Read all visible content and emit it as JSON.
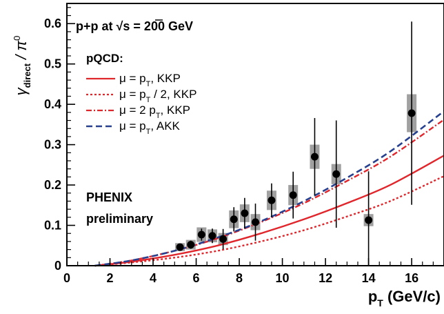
{
  "chart_data": {
    "type": "scatter",
    "ylabel": {
      "main": "γ",
      "main_sub": "direct",
      "slash": " / π",
      "slash_sup": "0"
    },
    "xlabel": {
      "main": "p",
      "sub": "T",
      "rest": " (GeV/c)"
    },
    "xlim": [
      0,
      17.5
    ],
    "ylim": [
      0,
      0.65
    ],
    "x_ticks": [
      0,
      2,
      4,
      6,
      8,
      10,
      12,
      14,
      16
    ],
    "y_ticks": [
      0,
      0.1,
      0.2,
      0.3,
      0.4,
      0.5,
      0.6
    ],
    "x_tick_labels": [
      "0",
      "2",
      "4",
      "6",
      "8",
      "10",
      "12",
      "14",
      "16"
    ],
    "y_tick_labels": [
      "0",
      "0.1",
      "0.2",
      "0.3",
      "0.4",
      "0.5",
      "0.6"
    ],
    "annotations": {
      "system": {
        "pre": "p+p at ",
        "sqrt": "s",
        "post": " = 200 GeV"
      },
      "pqcd_title": "pQCD:",
      "experiment_line1": "PHENIX",
      "experiment_line2": "preliminary"
    },
    "legend_placement": "upper-left",
    "series": [
      {
        "name": "PHENIX preliminary",
        "kind": "points",
        "color": "#000000",
        "box_color": "#a0a0a0",
        "x": [
          5.25,
          5.75,
          6.25,
          6.75,
          7.25,
          7.75,
          8.25,
          8.75,
          9.5,
          10.5,
          11.5,
          12.5,
          14.0,
          16.0
        ],
        "y": [
          0.046,
          0.052,
          0.077,
          0.074,
          0.066,
          0.115,
          0.13,
          0.108,
          0.162,
          0.175,
          0.27,
          0.227,
          0.113,
          0.378
        ],
        "stat_err": [
          0.008,
          0.01,
          0.015,
          0.018,
          0.025,
          0.03,
          0.038,
          0.046,
          0.042,
          0.058,
          0.096,
          0.133,
          0.121,
          0.227
        ],
        "sys_err": [
          0.01,
          0.012,
          0.018,
          0.016,
          0.015,
          0.022,
          0.022,
          0.02,
          0.024,
          0.025,
          0.03,
          0.025,
          0.015,
          0.047
        ]
      },
      {
        "name_parts": {
          "pre": "μ = p",
          "sub": "T",
          "post": ", KKP"
        },
        "kind": "curve",
        "color": "#e0252b",
        "dash": "solid",
        "x": [
          1.3,
          3,
          5,
          7,
          9,
          11,
          13,
          15,
          17.5
        ],
        "y": [
          0.0,
          0.01,
          0.027,
          0.05,
          0.08,
          0.115,
          0.155,
          0.2,
          0.273
        ]
      },
      {
        "name_parts": {
          "pre": "μ = p",
          "sub": "T",
          "post": " / 2, KKP"
        },
        "kind": "curve",
        "color": "#e0252b",
        "dash": "dotted",
        "x": [
          1.3,
          3,
          5,
          7,
          9,
          11,
          13,
          15,
          17.5
        ],
        "y": [
          0.0,
          0.008,
          0.02,
          0.037,
          0.06,
          0.088,
          0.122,
          0.16,
          0.222
        ]
      },
      {
        "name_parts": {
          "pre": "μ = 2 p",
          "sub": "T",
          "post": ", KKP"
        },
        "kind": "curve",
        "color": "#e0252b",
        "dash": "dashdot",
        "x": [
          1.3,
          3,
          5,
          7,
          9,
          11,
          13,
          15,
          17.5
        ],
        "y": [
          0.0,
          0.013,
          0.037,
          0.068,
          0.108,
          0.155,
          0.21,
          0.27,
          0.362
        ]
      },
      {
        "name_parts": {
          "pre": "μ = p",
          "sub": "T",
          "post": ", AKK"
        },
        "kind": "curve",
        "color": "#26408f",
        "dash": "dashed",
        "x": [
          1.3,
          3,
          5,
          7,
          9,
          11,
          13,
          15,
          17.5
        ],
        "y": [
          0.0,
          0.013,
          0.037,
          0.07,
          0.11,
          0.16,
          0.218,
          0.283,
          0.383
        ]
      }
    ]
  }
}
